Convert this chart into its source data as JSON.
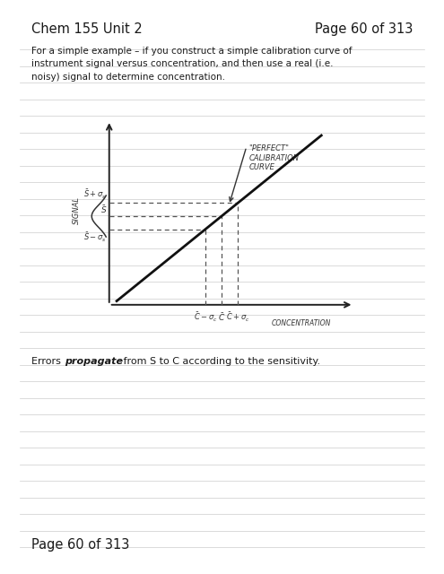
{
  "header_left": "Chem 155 Unit 2",
  "header_right": "Page 60 of 313",
  "body_text": "For a simple example – if you construct a simple calibration curve of\ninstrument signal versus concentration, and then use a real (i.e.\nnoisy) signal to determine concentration.",
  "errors_text_plain": "Errors ",
  "errors_text_bold": "propagate",
  "errors_text_rest": " from S to C according to the sensitivity.",
  "footer": "Page 60 of 313",
  "bg_color": "#ffffff",
  "ruled_line_color": "#cccccc",
  "fig_width": 4.95,
  "fig_height": 6.4
}
